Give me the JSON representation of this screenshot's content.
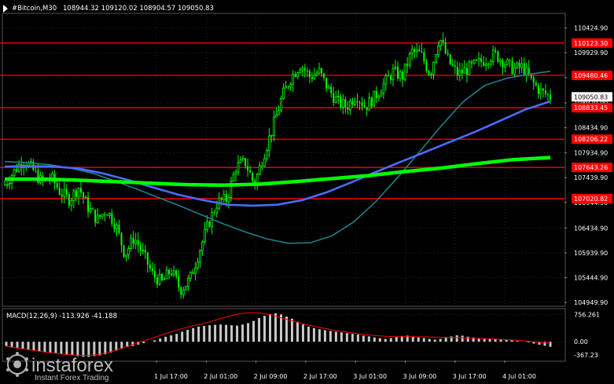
{
  "header": {
    "title": "#Bitcoin,M30",
    "ohlc": "108944.32 109120.02 108904.57 109050.83"
  },
  "watermark": {
    "brand": "instaforex",
    "tagline": "Instant Forex Trading"
  },
  "colors": {
    "background": "#000000",
    "grid": "#3a3a3a",
    "candle": "#00ff00",
    "level": "#ff0000",
    "ma_fast": "#1e7f8c",
    "ma_mid": "#4a6cff",
    "ma_slow": "#00ff00",
    "macd_hist": "#c8c8c8",
    "macd_signal": "#ff0000",
    "text": "#ffffff"
  },
  "chart_data": [
    {
      "type": "candlestick",
      "symbol": "#Bitcoin",
      "timeframe": "M30",
      "last_price": 109050.83,
      "price_ticks": [
        "110424.90",
        "109929.90",
        "109434.90",
        "108929.90",
        "108434.90",
        "107934.90",
        "107439.90",
        "106944.90",
        "106434.90",
        "105939.90",
        "105444.90",
        "104949.90"
      ],
      "time_ticks": [
        "1 Jul 17:00",
        "2 Jul 01:00",
        "2 Jul 09:00",
        "2 Jul 17:00",
        "3 Jul 01:00",
        "3 Jul 09:00",
        "3 Jul 17:00",
        "4 Jul 01:00"
      ],
      "ylim": [
        104890,
        110700
      ],
      "levels": [
        {
          "label": "110123.30",
          "value": 110123.3
        },
        {
          "label": "109480.46",
          "value": 109480.46
        },
        {
          "label": "108833.45",
          "value": 108833.45
        },
        {
          "label": "108206.22",
          "value": 108206.22
        },
        {
          "label": "107643.26",
          "value": 107643.26
        },
        {
          "label": "107020.82",
          "value": 107020.82
        }
      ],
      "close_path": [
        107300,
        107560,
        107800,
        107600,
        107350,
        107450,
        107150,
        107000,
        107250,
        106850,
        106600,
        106800,
        106500,
        105900,
        106250,
        105900,
        105500,
        105350,
        105600,
        105200,
        105400,
        105950,
        106500,
        106950,
        107000,
        107650,
        107750,
        107300,
        107900,
        108450,
        109050,
        109450,
        109700,
        109450,
        109550,
        109200,
        108950,
        108850,
        109100,
        108850,
        109050,
        109300,
        109550,
        109450,
        109950,
        109900,
        109500,
        110250,
        109750,
        109500,
        109600,
        109700,
        109800,
        109900,
        109750,
        109600,
        109650,
        109350,
        109150,
        109050
      ],
      "moving_averages": [
        {
          "name": "fast",
          "path": [
            107760,
            107740,
            107700,
            107630,
            107530,
            107380,
            107220,
            107050,
            106880,
            106700,
            106520,
            106360,
            106220,
            106130,
            106140,
            106280,
            106560,
            106960,
            107440,
            107950,
            108470,
            108950,
            109280,
            109420,
            109500,
            109560
          ]
        },
        {
          "name": "mid",
          "path": [
            107660,
            107670,
            107660,
            107620,
            107520,
            107390,
            107240,
            107100,
            106990,
            106900,
            106880,
            106900,
            106990,
            107150,
            107350,
            107560,
            107760,
            107960,
            108160,
            108360,
            108580,
            108800,
            108960
          ]
        },
        {
          "name": "slow",
          "path": [
            107410,
            107410,
            107390,
            107360,
            107330,
            107300,
            107290,
            107310,
            107360,
            107420,
            107480,
            107560,
            107630,
            107720,
            107800,
            107840
          ]
        }
      ]
    },
    {
      "type": "macd",
      "label": "MACD(12,26,9) -113.926 -41.188",
      "params": [
        12,
        26,
        9
      ],
      "macd": -113.926,
      "signal": -41.188,
      "ticks": [
        "756.261",
        "0.00",
        "-367.23"
      ],
      "ylim": [
        -520,
        900
      ],
      "histogram": [
        -120,
        -150,
        -180,
        -200,
        -230,
        -250,
        -270,
        -280,
        -300,
        -320,
        -340,
        -360,
        -380,
        -400,
        -420,
        -420,
        -400,
        -380,
        -350,
        -300,
        -250,
        -200,
        -150,
        -120,
        -80,
        -40,
        0,
        40,
        90,
        140,
        180,
        220,
        280,
        330,
        380,
        420,
        440,
        460,
        470,
        480,
        470,
        460,
        450,
        480,
        520,
        580,
        660,
        720,
        770,
        790,
        760,
        700,
        640,
        560,
        480,
        420,
        380,
        350,
        320,
        300,
        280,
        260,
        240,
        220,
        200,
        170,
        150,
        120,
        100,
        80,
        100,
        130,
        160,
        170,
        140,
        120,
        100,
        80,
        60,
        80,
        110,
        150,
        180,
        170,
        140,
        120,
        100,
        90,
        80,
        70,
        60,
        50,
        40,
        20,
        0,
        -20,
        -50,
        -80,
        -110,
        -140
      ],
      "signal_line": [
        -130,
        -170,
        -210,
        -250,
        -290,
        -320,
        -350,
        -370,
        -380,
        -370,
        -330,
        -260,
        -170,
        -80,
        10,
        100,
        190,
        280,
        360,
        430,
        490,
        560,
        640,
        720,
        780,
        810,
        800,
        760,
        690,
        610,
        540,
        470,
        410,
        360,
        310,
        270,
        230,
        200,
        170,
        150,
        140,
        140,
        140,
        135,
        130,
        125,
        120,
        110,
        100,
        90,
        80,
        65,
        50,
        30,
        10,
        -20,
        -41
      ]
    }
  ]
}
